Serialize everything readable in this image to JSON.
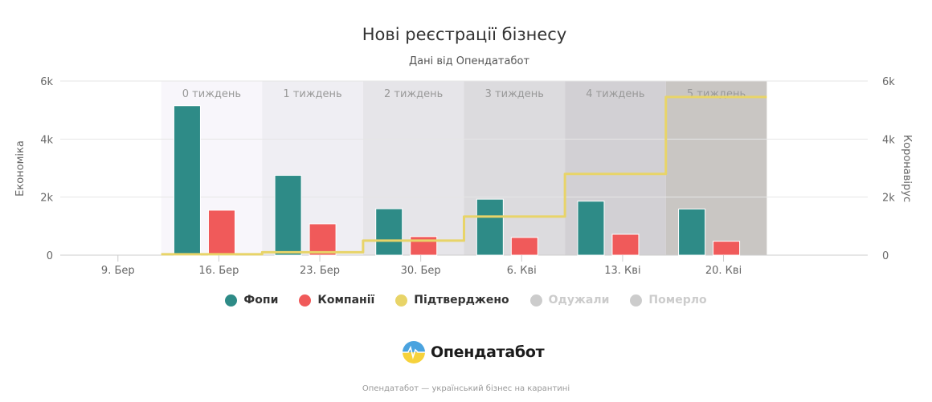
{
  "title": "Нові реєстрації бізнесу",
  "subtitle": "Дані від Опендатабот",
  "footer": "Опендатабот — український бізнес на карантині",
  "logo": {
    "text": "Опендатабот"
  },
  "colors": {
    "fop": "#2e8b87",
    "companies": "#f05a5a",
    "confirmed": "#e8d468",
    "disabled": "#cccccc",
    "grid": "#e6e6e6",
    "bands": [
      "#f8f6fb",
      "#efeef3",
      "#e6e5e9",
      "#dcdbde",
      "#d2d0d4",
      "#c9c6c3"
    ]
  },
  "chart_data": {
    "type": "bar",
    "title": "Нові реєстрації бізнесу",
    "subtitle": "Дані від Опендатабот",
    "x_tick_labels": [
      "9. Бер",
      "16. Бер",
      "23. Бер",
      "30. Бер",
      "6. Кві",
      "13. Кві",
      "20. Кві"
    ],
    "y_left": {
      "label": "Економіка",
      "ticks": [
        "0",
        "2k",
        "4k",
        "6k"
      ],
      "min": 0,
      "max": 6000
    },
    "y_right": {
      "label": "Коронавірус",
      "ticks": [
        "0",
        "2k",
        "4k",
        "6k"
      ],
      "min": 0,
      "max": 6000
    },
    "grid": true,
    "legend_position": "bottom",
    "week_bands": [
      {
        "label": "0 тиждень",
        "start": "2020-03-12",
        "end": "2020-03-19"
      },
      {
        "label": "1 тиждень",
        "start": "2020-03-19",
        "end": "2020-03-26"
      },
      {
        "label": "2 тиждень",
        "start": "2020-03-26",
        "end": "2020-04-02"
      },
      {
        "label": "3 тиждень",
        "start": "2020-04-02",
        "end": "2020-04-09"
      },
      {
        "label": "4 тиждень",
        "start": "2020-04-09",
        "end": "2020-04-16"
      },
      {
        "label": "5 тиждень",
        "start": "2020-04-16",
        "end": "2020-04-23"
      }
    ],
    "series": [
      {
        "name": "Фопи",
        "type": "bar",
        "axis": "left",
        "x": [
          "2020-03-15",
          "2020-03-22",
          "2020-03-29",
          "2020-04-05",
          "2020-04-12",
          "2020-04-19"
        ],
        "values": [
          5150,
          2750,
          1600,
          1930,
          1860,
          1590
        ]
      },
      {
        "name": "Компанії",
        "type": "bar",
        "axis": "left",
        "x": [
          "2020-03-15",
          "2020-03-22",
          "2020-03-29",
          "2020-04-05",
          "2020-04-12",
          "2020-04-19"
        ],
        "values": [
          1550,
          1080,
          640,
          610,
          720,
          480
        ]
      },
      {
        "name": "Підтверджено",
        "type": "step-line",
        "axis": "right",
        "x": [
          "2020-03-12",
          "2020-03-19",
          "2020-03-26",
          "2020-04-02",
          "2020-04-09",
          "2020-04-16",
          "2020-04-23"
        ],
        "values": [
          30,
          100,
          500,
          1330,
          2800,
          5450,
          5450
        ]
      },
      {
        "name": "Одужали",
        "type": "line",
        "visible": false,
        "values": []
      },
      {
        "name": "Померло",
        "type": "line",
        "visible": false,
        "values": []
      }
    ]
  }
}
